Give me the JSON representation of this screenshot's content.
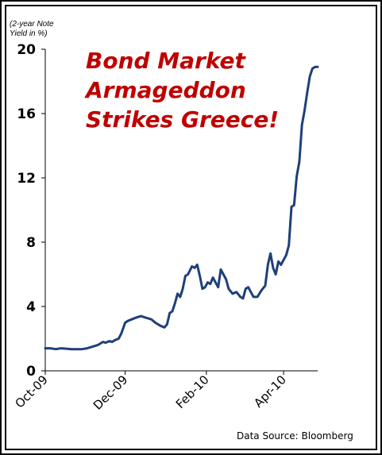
{
  "chart_data": {
    "type": "line",
    "title_lines": [
      "Bond Market",
      "Armageddon",
      "Strikes Greece!"
    ],
    "ylabel_lines": [
      "(2-year Note",
      "Yield in %)"
    ],
    "source": "Data Source: Bloomberg",
    "ylim": [
      0,
      20
    ],
    "yticks": [
      0,
      4,
      8,
      12,
      16,
      20
    ],
    "ytick_labels": [
      "0",
      "4",
      "8",
      "12",
      "16",
      "20"
    ],
    "xlim": [
      "2009-10-01",
      "2010-04-27"
    ],
    "xticks": [
      "2009-10-01",
      "2009-12-01",
      "2010-02-01",
      "2010-04-01"
    ],
    "xtick_labels": [
      "Oct-09",
      "Dec-09",
      "Feb-10",
      "Apr-10"
    ],
    "grid": false,
    "line_color": "#1f3f7a",
    "title_color": "#c00000",
    "series": [
      {
        "x": [
          "2009-10-01",
          "2009-10-05",
          "2009-10-09",
          "2009-10-13",
          "2009-10-17",
          "2009-10-21",
          "2009-10-25",
          "2009-10-29",
          "2009-11-02",
          "2009-11-06",
          "2009-11-10",
          "2009-11-14",
          "2009-11-16",
          "2009-11-19",
          "2009-11-21",
          "2009-11-23",
          "2009-11-26",
          "2009-11-28",
          "2009-12-01",
          "2009-12-03",
          "2009-12-06",
          "2009-12-09",
          "2009-12-13",
          "2009-12-17",
          "2009-12-21",
          "2009-12-24",
          "2009-12-28",
          "2009-12-31",
          "2010-01-02",
          "2010-01-04",
          "2010-01-06",
          "2010-01-08",
          "2010-01-10",
          "2010-01-12",
          "2010-01-14",
          "2010-01-16",
          "2010-01-18",
          "2010-01-21",
          "2010-01-23",
          "2010-01-25",
          "2010-01-27",
          "2010-01-29",
          "2010-01-31",
          "2010-02-02",
          "2010-02-04",
          "2010-02-06",
          "2010-02-08",
          "2010-02-10",
          "2010-02-12",
          "2010-02-14",
          "2010-02-16",
          "2010-02-18",
          "2010-02-21",
          "2010-02-24",
          "2010-02-27",
          "2010-03-01",
          "2010-03-03",
          "2010-03-05",
          "2010-03-07",
          "2010-03-09",
          "2010-03-12",
          "2010-03-15",
          "2010-03-18",
          "2010-03-20",
          "2010-03-22",
          "2010-03-24",
          "2010-03-26",
          "2010-03-28",
          "2010-03-30",
          "2010-04-01",
          "2010-04-03",
          "2010-04-05",
          "2010-04-07",
          "2010-04-09",
          "2010-04-11",
          "2010-04-13",
          "2010-04-15",
          "2010-04-17",
          "2010-04-19",
          "2010-04-21",
          "2010-04-23",
          "2010-04-25",
          "2010-04-27"
        ],
        "values": [
          1.4,
          1.4,
          1.35,
          1.4,
          1.38,
          1.35,
          1.35,
          1.35,
          1.4,
          1.5,
          1.6,
          1.8,
          1.75,
          1.85,
          1.8,
          1.9,
          2.0,
          2.3,
          3.0,
          3.1,
          3.2,
          3.3,
          3.4,
          3.3,
          3.2,
          3.0,
          2.8,
          2.7,
          2.9,
          3.6,
          3.7,
          4.2,
          4.8,
          4.6,
          5.1,
          5.9,
          6.0,
          6.5,
          6.4,
          6.6,
          5.9,
          5.1,
          5.2,
          5.5,
          5.4,
          5.8,
          5.5,
          5.2,
          6.3,
          6.0,
          5.7,
          5.1,
          4.8,
          4.9,
          4.6,
          4.5,
          5.1,
          5.2,
          4.9,
          4.6,
          4.6,
          5.0,
          5.3,
          6.6,
          7.3,
          6.4,
          6.0,
          6.8,
          6.6,
          6.9,
          7.2,
          7.8,
          10.2,
          10.3,
          12.1,
          13.0,
          15.3,
          16.2,
          17.3,
          18.3,
          18.8,
          18.9,
          18.9
        ]
      }
    ]
  }
}
